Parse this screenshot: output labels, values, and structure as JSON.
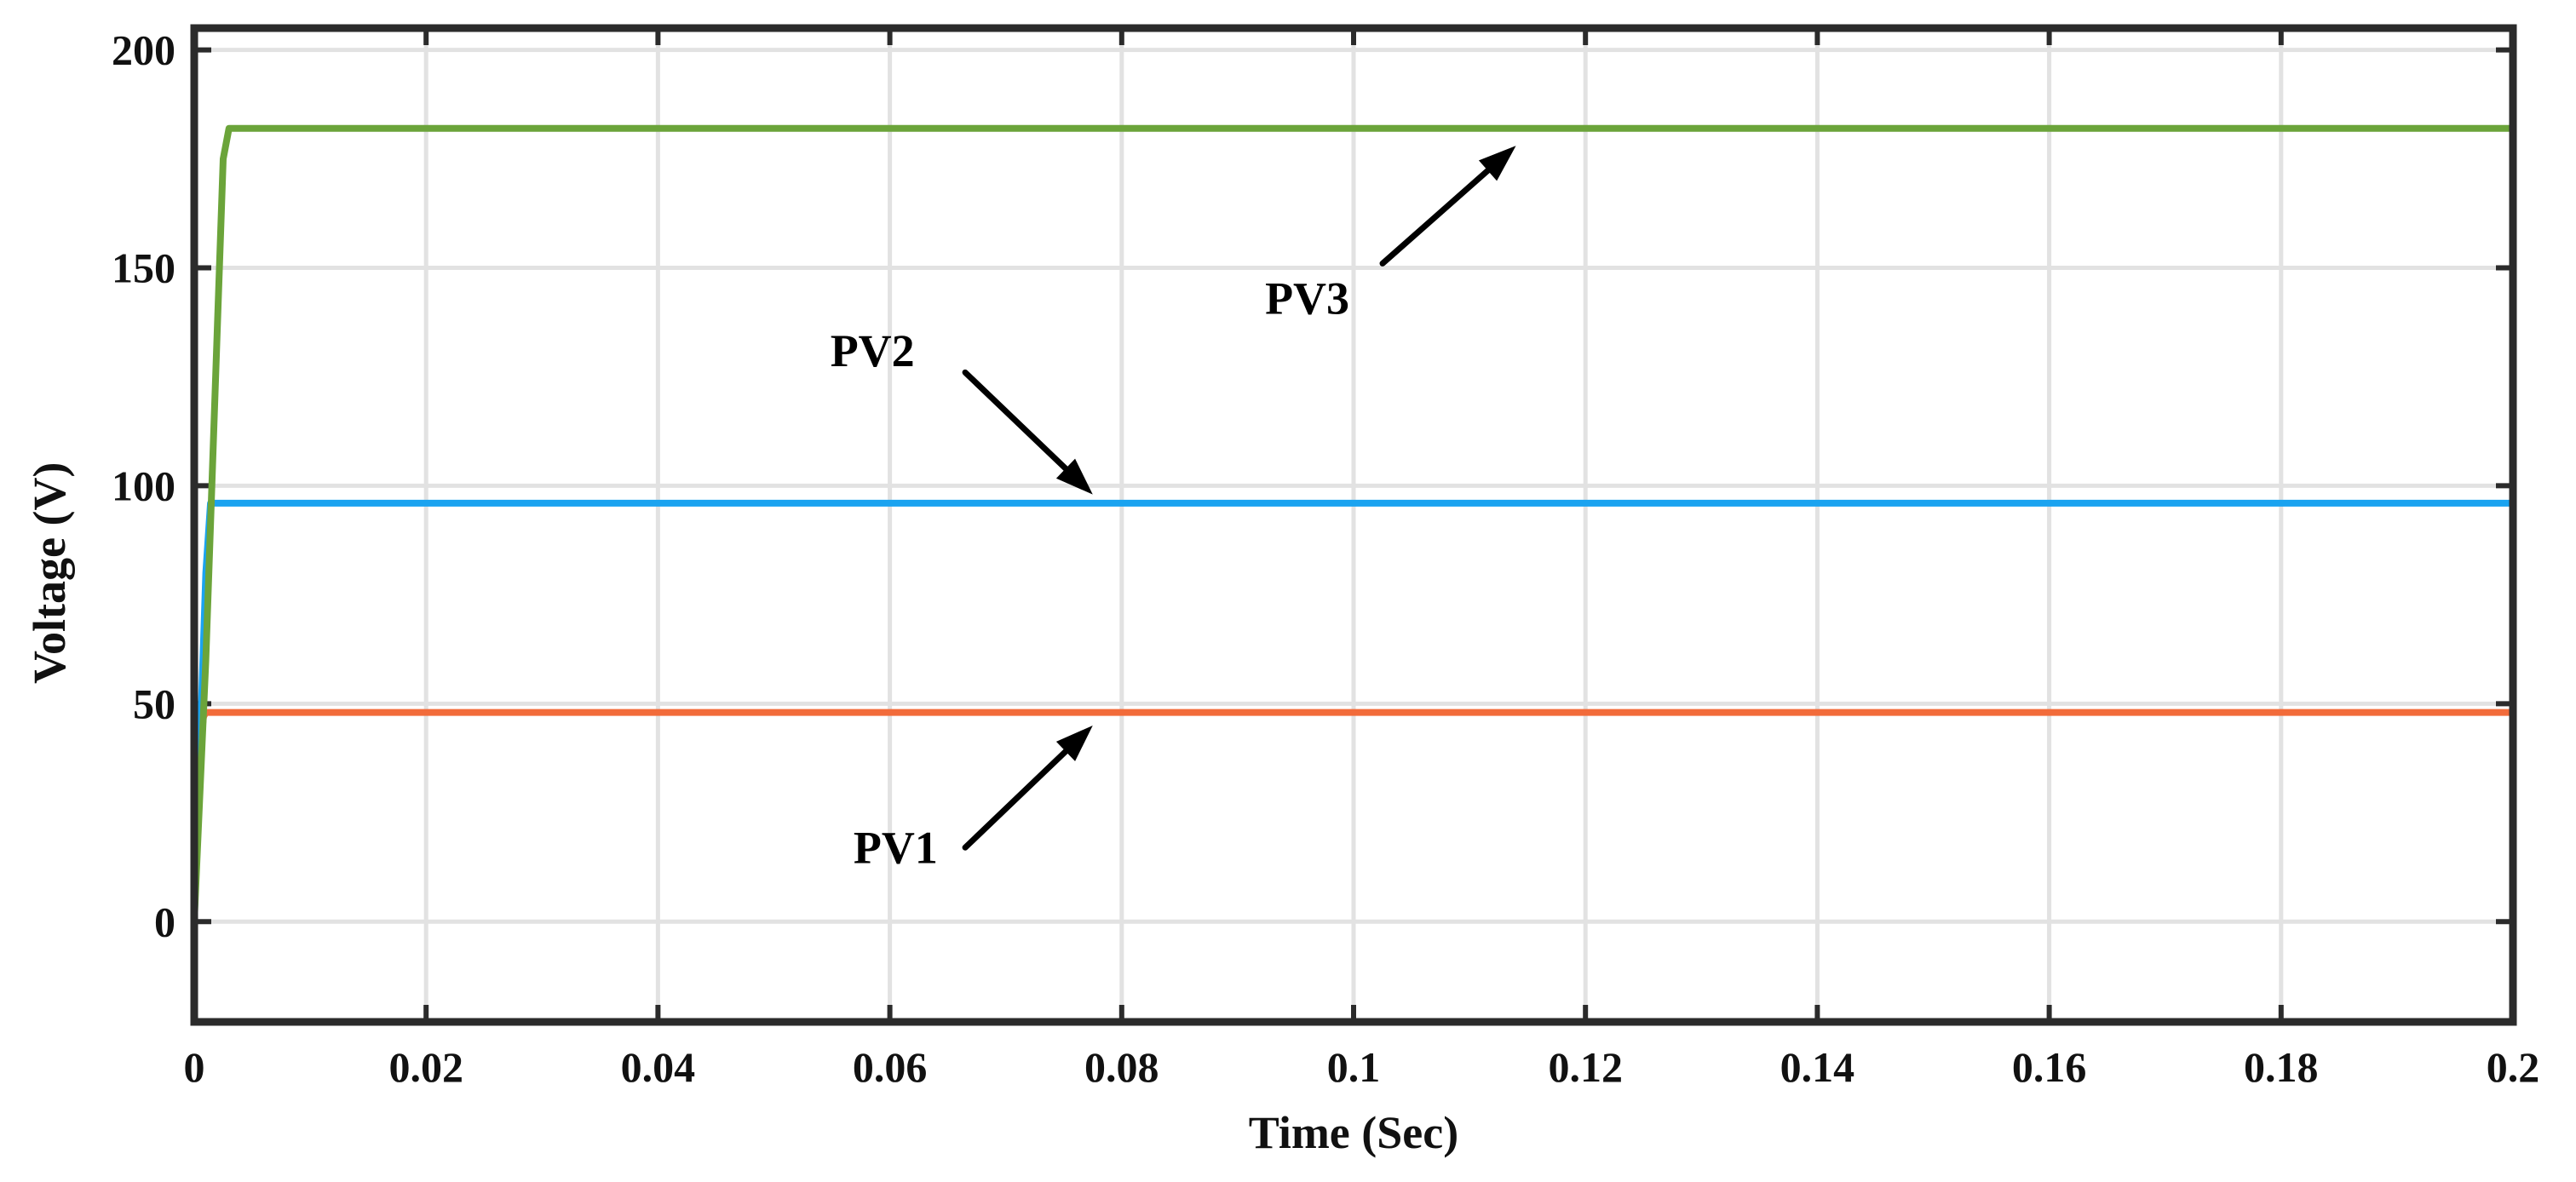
{
  "chart_data": {
    "type": "line",
    "title": "",
    "xlabel": "Time (Sec)",
    "ylabel": "Voltage (V)",
    "xlim": [
      0,
      0.2
    ],
    "ylim": [
      -23,
      205
    ],
    "grid": true,
    "x_ticks": [
      0,
      0.02,
      0.04,
      0.06,
      0.08,
      0.1,
      0.12,
      0.14,
      0.16,
      0.18,
      0.2
    ],
    "x_tick_labels": [
      "0",
      "0.02",
      "0.04",
      "0.06",
      "0.08",
      "0.1",
      "0.12",
      "0.14",
      "0.16",
      "0.18",
      "0.2"
    ],
    "y_ticks": [
      0,
      50,
      100,
      150,
      200
    ],
    "y_tick_labels": [
      "0",
      "50",
      "100",
      "150",
      "200"
    ],
    "series": [
      {
        "name": "PV1",
        "color": "#f26b3a",
        "x": [
          0,
          0.0002,
          0.0005,
          0.0008,
          0.001,
          0.2
        ],
        "y": [
          0,
          20,
          40,
          47,
          48,
          48
        ]
      },
      {
        "name": "PV2",
        "color": "#1aa3f0",
        "x": [
          0,
          0.0005,
          0.001,
          0.0014,
          0.2
        ],
        "y": [
          0,
          40,
          80,
          96,
          96
        ]
      },
      {
        "name": "PV3",
        "color": "#6ba43a",
        "x": [
          0,
          0.001,
          0.0025,
          0.003,
          0.2
        ],
        "y": [
          0,
          60,
          175,
          182,
          182
        ]
      }
    ],
    "annotations": [
      {
        "label": "PV1",
        "text_x": 0.0605,
        "text_y": 17,
        "tail_x": 0.0665,
        "tail_y": 17,
        "head_x": 0.0775,
        "head_y": 45
      },
      {
        "label": "PV2",
        "text_x": 0.0585,
        "text_y": 131,
        "tail_x": 0.0665,
        "tail_y": 126,
        "head_x": 0.0775,
        "head_y": 98
      },
      {
        "label": "PV3",
        "text_x": 0.096,
        "text_y": 143,
        "tail_x": 0.1025,
        "tail_y": 151,
        "head_x": 0.114,
        "head_y": 178
      }
    ]
  }
}
